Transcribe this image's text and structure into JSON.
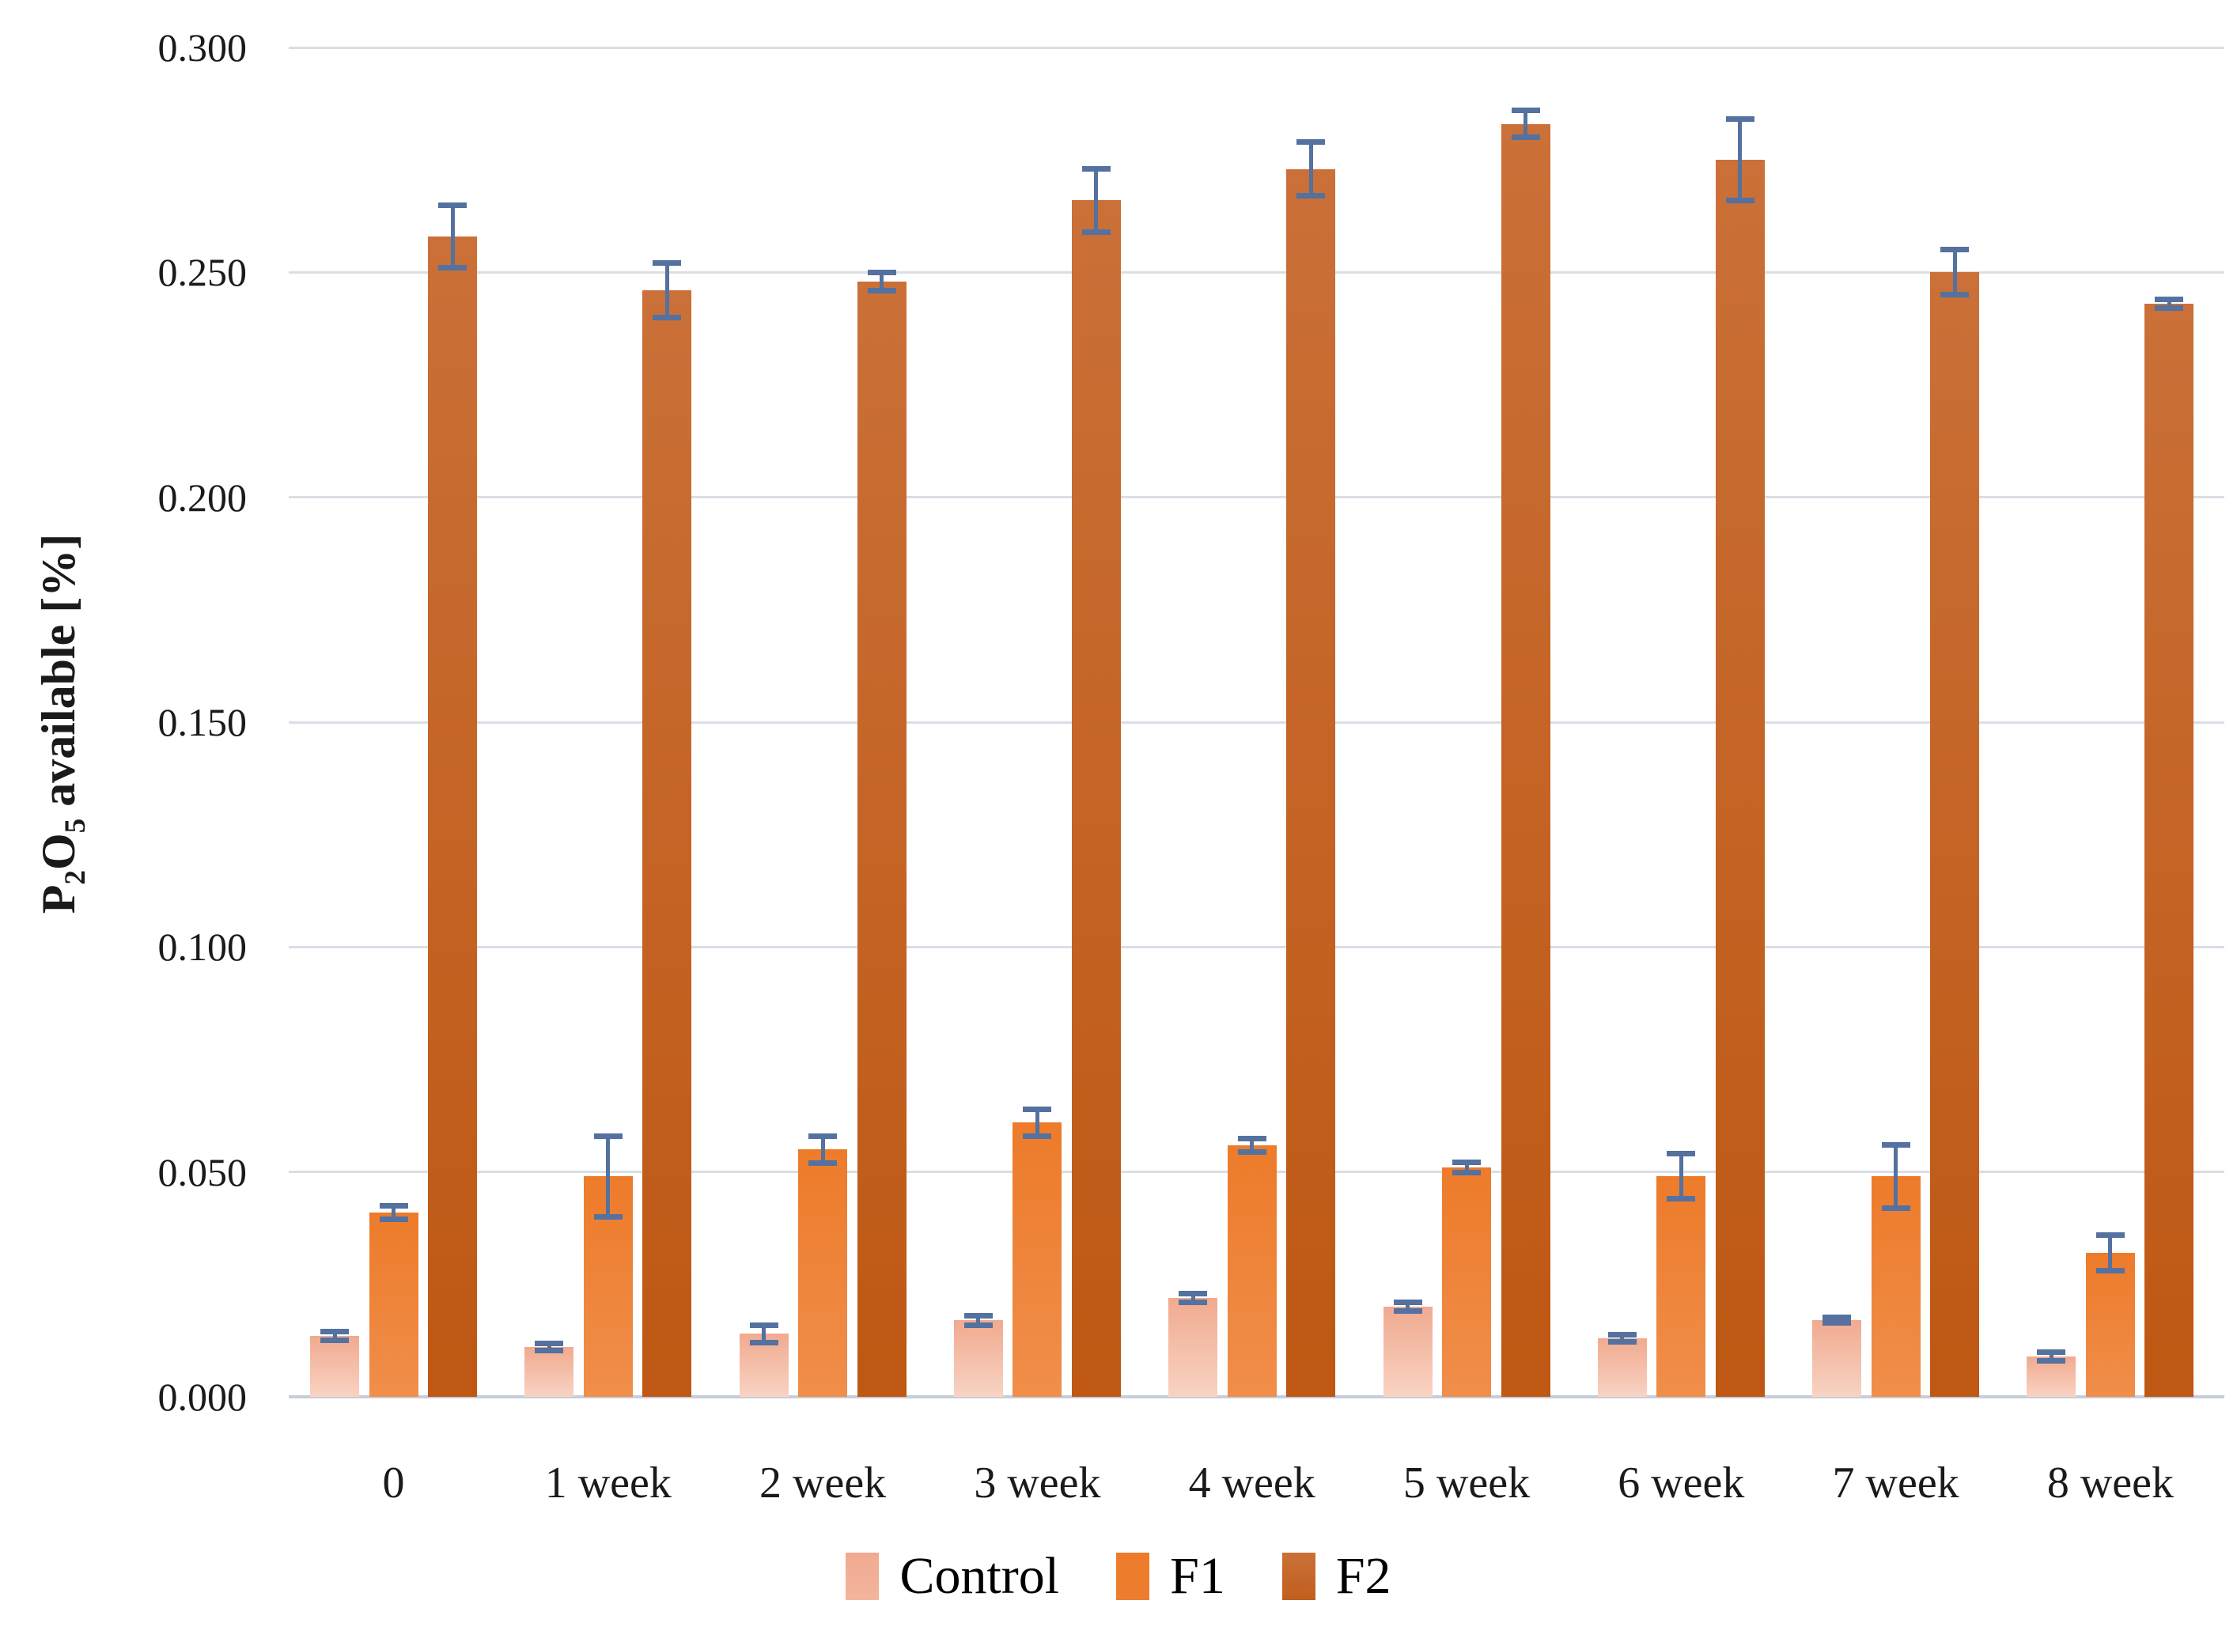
{
  "chart_data": {
    "type": "bar",
    "title": "",
    "ylabel_parts": {
      "base1": "P",
      "sub1": "2",
      "base2": "O",
      "sub2": "5",
      "rest": " available  [%]"
    },
    "categories": [
      "0",
      "1 week",
      "2 week",
      "3 week",
      "4 week",
      "5 week",
      "6 week",
      "7 week",
      "8 week"
    ],
    "series": [
      {
        "name": "Control",
        "color_top": "#F1AA8F",
        "color_bottom": "#F8D3C3",
        "legend_color": "#F3B59C",
        "values": [
          0.0135,
          0.011,
          0.014,
          0.017,
          0.022,
          0.02,
          0.013,
          0.017,
          0.009
        ],
        "errors": [
          0.001,
          0.0008,
          0.002,
          0.001,
          0.001,
          0.001,
          0.0008,
          0.0006,
          0.001
        ]
      },
      {
        "name": "F1",
        "color_top": "#ED7B2A",
        "color_bottom": "#F08E4B",
        "legend_color": "#ED7D2F",
        "values": [
          0.041,
          0.049,
          0.055,
          0.061,
          0.056,
          0.051,
          0.049,
          0.049,
          0.032
        ],
        "errors": [
          0.0015,
          0.009,
          0.003,
          0.003,
          0.0015,
          0.0012,
          0.005,
          0.007,
          0.004
        ]
      },
      {
        "name": "F2",
        "color_top": "#CA7038",
        "color_bottom": "#BE5813",
        "legend_color": "#C05F1F",
        "values": [
          0.258,
          0.246,
          0.248,
          0.266,
          0.273,
          0.283,
          0.275,
          0.25,
          0.243
        ],
        "errors": [
          0.007,
          0.006,
          0.002,
          0.007,
          0.006,
          0.003,
          0.009,
          0.005,
          0.001
        ]
      }
    ],
    "yticks": [
      "0.000",
      "0.050",
      "0.100",
      "0.150",
      "0.200",
      "0.250",
      "0.300"
    ],
    "ylim": [
      0,
      0.3
    ],
    "grid": true,
    "legend_position": "bottom",
    "error_bar_color": "#54719F",
    "gridline_color": "#DADEE5",
    "axisline_color": "#C7CEDA"
  }
}
